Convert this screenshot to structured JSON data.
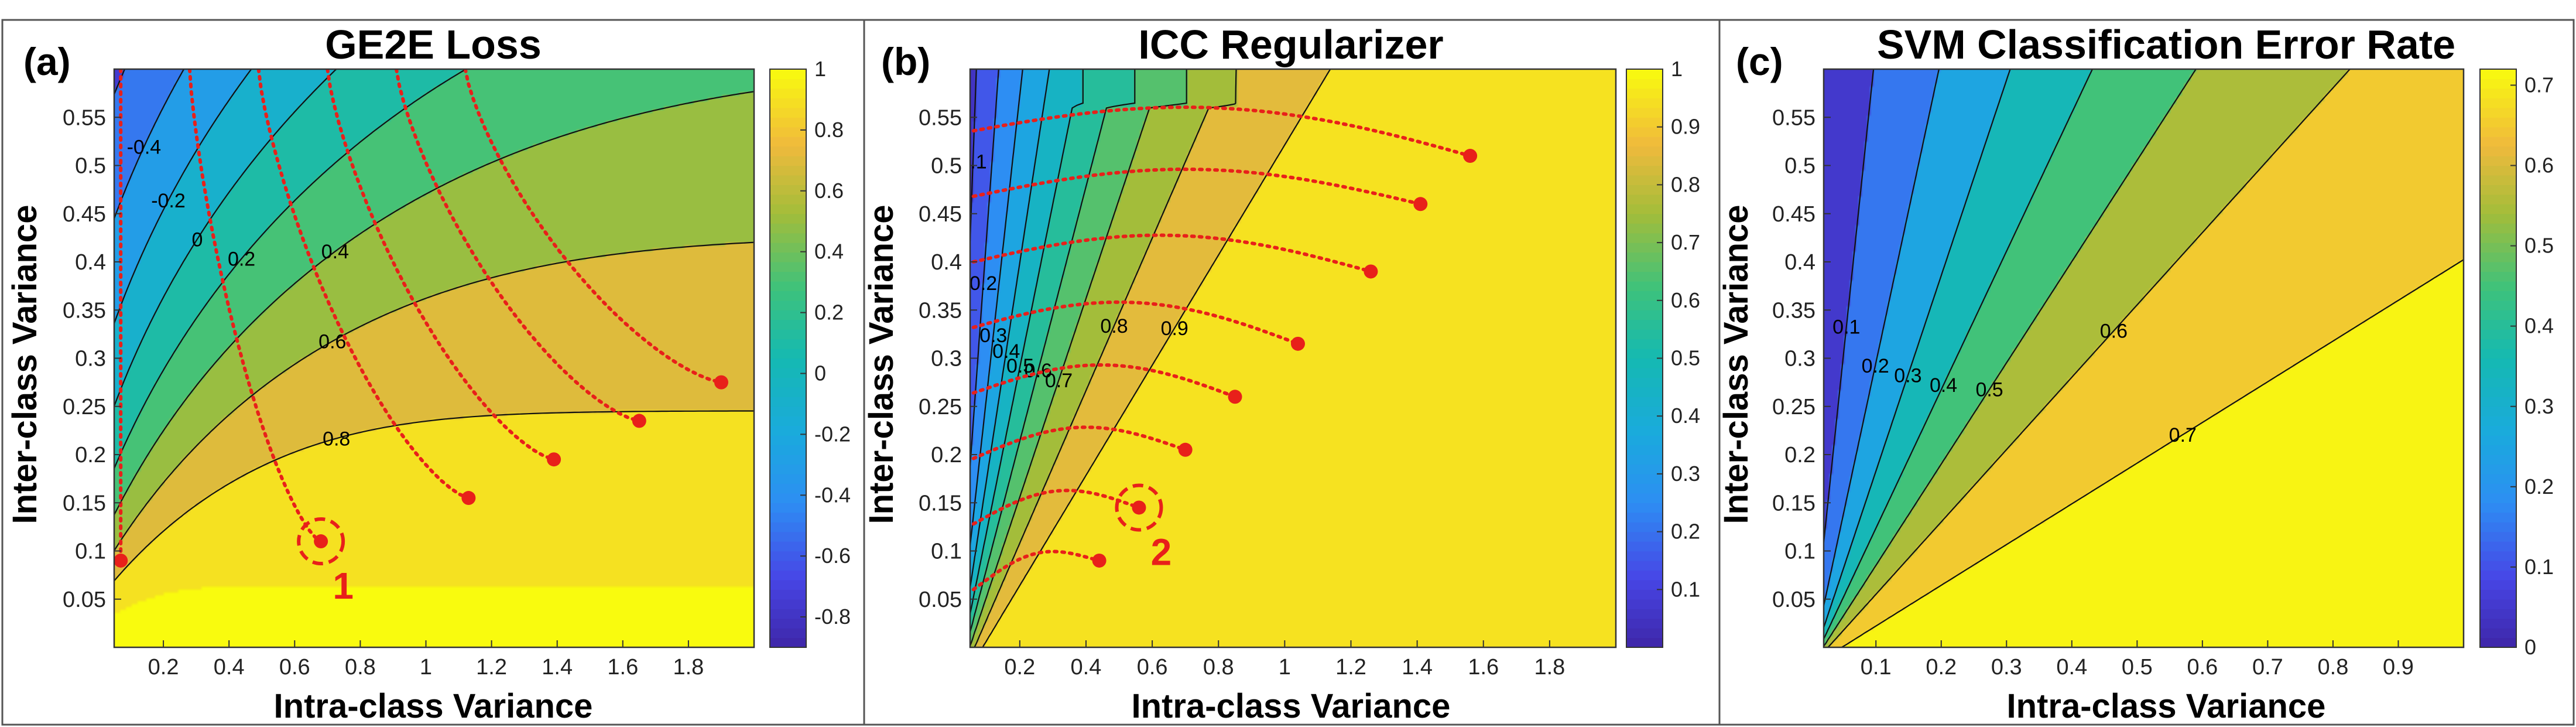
{
  "chart_data": [
    {
      "type": "contour",
      "panel_label": "(a)",
      "title": "GE2E Loss",
      "xlabel": "Intra-class Variance",
      "ylabel": "Inter-class Variance",
      "xlim": [
        0.05,
        2.0
      ],
      "ylim": [
        0.0,
        0.6
      ],
      "xticks": [
        "0.2",
        "0.4",
        "0.6",
        "0.8",
        "1",
        "1.2",
        "1.4",
        "1.6",
        "1.8"
      ],
      "yticks": [
        "0.05",
        "0.1",
        "0.15",
        "0.2",
        "0.25",
        "0.3",
        "0.35",
        "0.4",
        "0.45",
        "0.5",
        "0.55"
      ],
      "contour_levels": [
        "-0.6",
        "-0.4",
        "-0.2",
        "0",
        "0.2",
        "0.4",
        "0.6",
        "0.8",
        "1"
      ],
      "colorbar": {
        "min": -0.9,
        "max": 1.0,
        "ticks": [
          "1",
          "0.8",
          "0.6",
          "0.4",
          "0.2",
          "0",
          "-0.2",
          "-0.4",
          "-0.6",
          "-0.8"
        ]
      },
      "trajectory_endpoints": [
        {
          "x": 0.07,
          "y": 0.09
        },
        {
          "x": 0.68,
          "y": 0.11
        },
        {
          "x": 1.13,
          "y": 0.155
        },
        {
          "x": 1.39,
          "y": 0.195
        },
        {
          "x": 1.65,
          "y": 0.235
        },
        {
          "x": 1.9,
          "y": 0.275
        }
      ],
      "highlight": {
        "x": 0.68,
        "y": 0.11,
        "label": "1"
      }
    },
    {
      "type": "contour",
      "panel_label": "(b)",
      "title": "ICC Regularizer",
      "xlabel": "Intra-class Variance",
      "ylabel": "Inter-class Variance",
      "xlim": [
        0.05,
        2.0
      ],
      "ylim": [
        0.0,
        0.6
      ],
      "xticks": [
        "0.2",
        "0.4",
        "0.6",
        "0.8",
        "1",
        "1.2",
        "1.4",
        "1.6",
        "1.8"
      ],
      "yticks": [
        "0.05",
        "0.1",
        "0.15",
        "0.2",
        "0.25",
        "0.3",
        "0.35",
        "0.4",
        "0.45",
        "0.5",
        "0.55"
      ],
      "contour_levels": [
        "0.1",
        "0.2",
        "0.3",
        "0.4",
        "0.5",
        "0.6",
        "0.7",
        "0.8",
        "0.9",
        "1"
      ],
      "colorbar": {
        "min": 0.0,
        "max": 1.0,
        "ticks": [
          "1",
          "0.9",
          "0.8",
          "0.7",
          "0.6",
          "0.5",
          "0.4",
          "0.3",
          "0.2",
          "0.1"
        ]
      },
      "trajectory_endpoints": [
        {
          "x": 0.44,
          "y": 0.09
        },
        {
          "x": 0.56,
          "y": 0.145
        },
        {
          "x": 0.7,
          "y": 0.205
        },
        {
          "x": 0.85,
          "y": 0.26
        },
        {
          "x": 1.04,
          "y": 0.315
        },
        {
          "x": 1.26,
          "y": 0.39
        },
        {
          "x": 1.41,
          "y": 0.46
        },
        {
          "x": 1.56,
          "y": 0.51
        }
      ],
      "highlight": {
        "x": 0.56,
        "y": 0.145,
        "label": "2"
      }
    },
    {
      "type": "contour",
      "panel_label": "(c)",
      "title": "SVM Classification Error Rate",
      "xlabel": "Intra-class Variance",
      "ylabel": "Inter-class Variance",
      "xlim": [
        0.02,
        1.0
      ],
      "ylim": [
        0.0,
        0.6
      ],
      "xticks": [
        "0.1",
        "0.2",
        "0.3",
        "0.4",
        "0.5",
        "0.6",
        "0.7",
        "0.8",
        "0.9"
      ],
      "yticks": [
        "0.05",
        "0.1",
        "0.15",
        "0.2",
        "0.25",
        "0.3",
        "0.35",
        "0.4",
        "0.45",
        "0.5",
        "0.55"
      ],
      "contour_levels": [
        "0.1",
        "0.2",
        "0.3",
        "0.4",
        "0.5",
        "0.6",
        "0.7"
      ],
      "colorbar": {
        "min": 0.0,
        "max": 0.72,
        "ticks": [
          "0.7",
          "0.6",
          "0.5",
          "0.4",
          "0.3",
          "0.2",
          "0.1",
          "0"
        ]
      }
    }
  ]
}
